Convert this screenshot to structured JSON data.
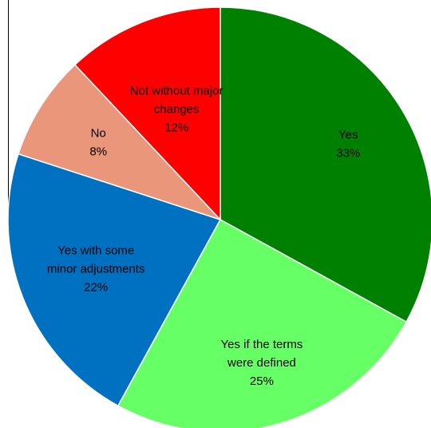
{
  "chart_data": {
    "type": "pie",
    "title": "",
    "start_angle_deg": 0,
    "direction": "clockwise",
    "slices": [
      {
        "label_lines": [
          "Yes",
          "33%"
        ],
        "value": 33,
        "color": "#008000"
      },
      {
        "label_lines": [
          "Yes if the terms",
          "were defined",
          "25%"
        ],
        "value": 25,
        "color": "#66FF66"
      },
      {
        "label_lines": [
          "Yes with some",
          "minor adjustments",
          "22%"
        ],
        "value": 22,
        "color": "#0070C0"
      },
      {
        "label_lines": [
          "No",
          "8%"
        ],
        "value": 8,
        "color": "#E9967A"
      },
      {
        "label_lines": [
          "Not without major",
          "changes",
          "12%"
        ],
        "value": 12,
        "color": "#FF0000"
      }
    ],
    "legend": "none"
  }
}
